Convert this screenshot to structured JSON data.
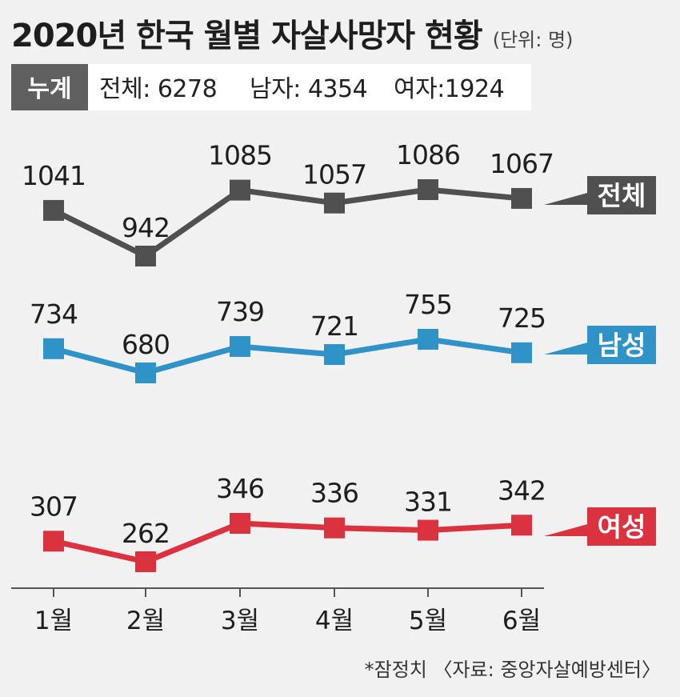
{
  "header": {
    "title": "2020년 한국 월별 자살사망자 현황",
    "unit": "(단위: 명)"
  },
  "cumulative": {
    "badge": "누계",
    "items": [
      "전체: 6278",
      "남자: 4354",
      "여자:1924"
    ]
  },
  "source": "*잠정치 〈자료: 중앙자살예방센터〉",
  "colors": {
    "total": "#505050",
    "male": "#2f93c8",
    "female": "#db3240",
    "background": "#f1f1f1",
    "axis": "#555555"
  },
  "chart_data": {
    "type": "line",
    "categories": [
      "1월",
      "2월",
      "3월",
      "4월",
      "5월",
      "6월"
    ],
    "series": [
      {
        "name": "전체",
        "values": [
          1041,
          942,
          1085,
          1057,
          1086,
          1067
        ]
      },
      {
        "name": "남성",
        "values": [
          734,
          680,
          739,
          721,
          755,
          725
        ]
      },
      {
        "name": "여성",
        "values": [
          307,
          262,
          346,
          336,
          331,
          342
        ]
      }
    ],
    "title": "2020년 한국 월별 자살사망자 현황",
    "xlabel": "",
    "ylabel": "",
    "grid": false,
    "legend": "right-inline"
  }
}
